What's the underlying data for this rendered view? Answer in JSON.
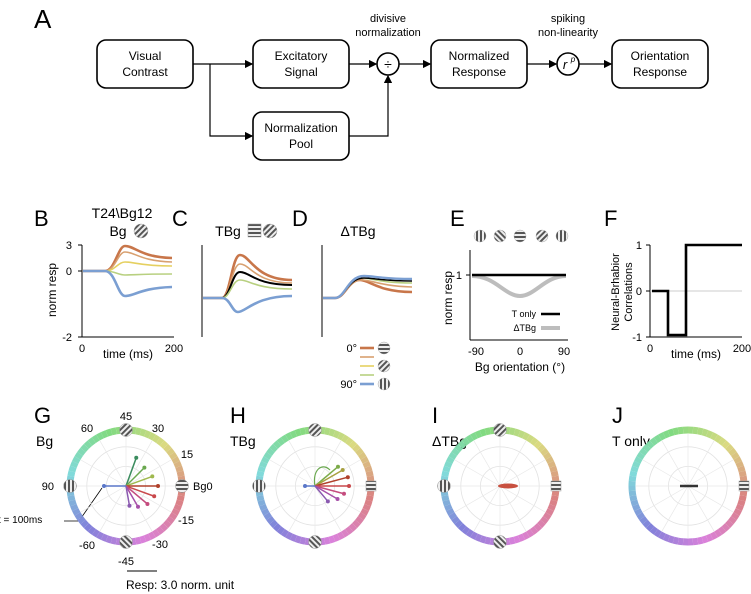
{
  "panel_letters": {
    "A": "A",
    "B": "B",
    "C": "C",
    "D": "D",
    "E": "E",
    "F": "F",
    "G": "G",
    "H": "H",
    "I": "I",
    "J": "J"
  },
  "flow": {
    "visual_contrast": [
      "Visual",
      "Contrast"
    ],
    "excitatory": [
      "Excitatory",
      "Signal"
    ],
    "norm_pool": [
      "Normalization",
      "Pool"
    ],
    "norm_response": [
      "Normalized",
      "Response"
    ],
    "orient_response": [
      "Orientation",
      "Response"
    ],
    "divisive": [
      "divisive",
      "normalization"
    ],
    "spiking": [
      "spiking",
      "non-linearity"
    ],
    "divide_symbol": "÷",
    "power_base": "r",
    "power_exp": "p"
  },
  "panel_B": {
    "header": "T24\\Bg12",
    "title": "Bg",
    "ylabel": "norm resp",
    "xlabel": "time (ms)",
    "yticks": [
      "3",
      "0",
      "-2"
    ],
    "xticks": [
      "0",
      "200"
    ]
  },
  "panel_C": {
    "title": "TBg"
  },
  "panel_D": {
    "title": "ΔTBg",
    "legend": [
      "0°",
      "90°"
    ]
  },
  "panel_E": {
    "ylabel": "norm resp",
    "xlabel": "Bg orientation (°)",
    "ytick": "1",
    "xticks": [
      "-90",
      "0",
      "90"
    ],
    "legend": [
      "T only",
      "ΔTBg"
    ]
  },
  "panel_F": {
    "ylabel": [
      "Neural-Brhabior",
      "Correlations"
    ],
    "xlabel": "time (ms)",
    "yticks": [
      "1",
      "0",
      "-1"
    ],
    "xticks": [
      "0",
      "200"
    ]
  },
  "panel_G": {
    "title": "Bg",
    "angles": [
      "45",
      "30",
      "15",
      "Bg0",
      "-15",
      "-30",
      "-45",
      "-60",
      "90",
      "60"
    ],
    "time_note": "t = 100ms",
    "scale": "Resp: 3.0 norm. unit"
  },
  "panel_H": {
    "title": "TBg"
  },
  "panel_I": {
    "title": "ΔTBg"
  },
  "panel_J": {
    "title": "T only"
  },
  "colors": {
    "orange": "#c8764a",
    "blue": "#7b9fd2",
    "gray": "#bdbdbd",
    "black": "#000000"
  }
}
